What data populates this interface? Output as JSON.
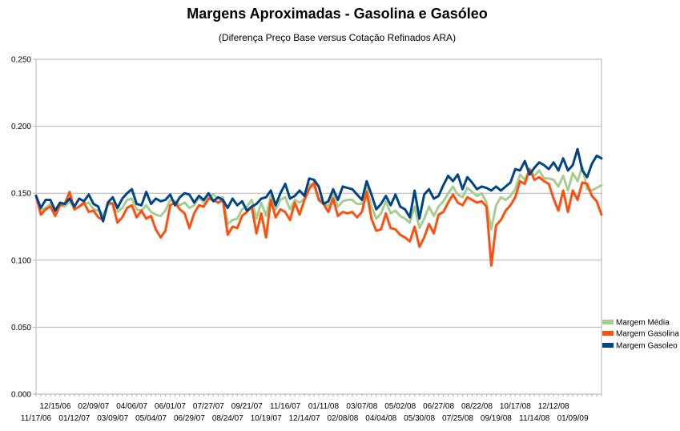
{
  "chart_data": {
    "type": "line",
    "title": "Margens Aproximadas - Gasolina e Gasóleo",
    "subtitle": "(Diferença Preço Base versus Cotação Refinados ARA)",
    "xlabel": "",
    "ylabel": "",
    "ylim": [
      0,
      0.25
    ],
    "y_ticks": [
      "0.000",
      "0.050",
      "0.100",
      "0.150",
      "0.200",
      "0.250"
    ],
    "grid": true,
    "legend_position": "right",
    "x_tick_labels_top": [
      "12/15/06",
      "02/09/07",
      "04/06/07",
      "06/01/07",
      "07/27/07",
      "09/21/07",
      "11/16/07",
      "01/11/08",
      "03/07/08",
      "05/02/08",
      "06/27/08",
      "08/22/08",
      "10/17/08",
      "12/12/08"
    ],
    "x_tick_labels_bottom": [
      "11/17/06",
      "01/12/07",
      "03/09/07",
      "05/04/07",
      "06/29/07",
      "08/24/07",
      "10/19/07",
      "12/14/07",
      "02/08/08",
      "04/04/08",
      "05/30/08",
      "07/25/08",
      "09/19/08",
      "11/14/08",
      "01/09/09"
    ],
    "series": [
      {
        "name": "Margem Média",
        "color": "#a6ce8f",
        "values": [
          0.148,
          0.137,
          0.139,
          0.142,
          0.136,
          0.141,
          0.14,
          0.144,
          0.138,
          0.14,
          0.142,
          0.143,
          0.138,
          0.137,
          0.134,
          0.141,
          0.143,
          0.136,
          0.139,
          0.145,
          0.146,
          0.138,
          0.137,
          0.141,
          0.136,
          0.134,
          0.133,
          0.137,
          0.145,
          0.144,
          0.141,
          0.143,
          0.139,
          0.141,
          0.147,
          0.143,
          0.147,
          0.149,
          0.146,
          0.147,
          0.127,
          0.13,
          0.131,
          0.138,
          0.14,
          0.145,
          0.131,
          0.143,
          0.133,
          0.148,
          0.138,
          0.145,
          0.147,
          0.138,
          0.145,
          0.143,
          0.146,
          0.157,
          0.155,
          0.146,
          0.143,
          0.14,
          0.149,
          0.14,
          0.144,
          0.145,
          0.145,
          0.142,
          0.142,
          0.154,
          0.14,
          0.131,
          0.135,
          0.144,
          0.135,
          0.137,
          0.133,
          0.131,
          0.128,
          0.14,
          0.124,
          0.131,
          0.14,
          0.133,
          0.14,
          0.144,
          0.15,
          0.155,
          0.149,
          0.147,
          0.154,
          0.151,
          0.148,
          0.15,
          0.143,
          0.123,
          0.141,
          0.147,
          0.145,
          0.148,
          0.153,
          0.164,
          0.16,
          0.168,
          0.163,
          0.167,
          0.161,
          0.161,
          0.16,
          0.155,
          0.163,
          0.152,
          0.165,
          0.159,
          0.17,
          0.153,
          0.152,
          0.154,
          0.156
        ]
      },
      {
        "name": "Margem Gasolina",
        "color": "#ff4f0f",
        "values": [
          0.148,
          0.134,
          0.138,
          0.14,
          0.133,
          0.141,
          0.142,
          0.151,
          0.138,
          0.14,
          0.143,
          0.136,
          0.137,
          0.132,
          0.13,
          0.143,
          0.142,
          0.128,
          0.132,
          0.139,
          0.141,
          0.132,
          0.137,
          0.131,
          0.133,
          0.123,
          0.117,
          0.122,
          0.141,
          0.143,
          0.138,
          0.135,
          0.124,
          0.135,
          0.141,
          0.14,
          0.146,
          0.145,
          0.143,
          0.145,
          0.119,
          0.125,
          0.124,
          0.133,
          0.136,
          0.14,
          0.12,
          0.135,
          0.117,
          0.145,
          0.132,
          0.138,
          0.136,
          0.13,
          0.143,
          0.134,
          0.145,
          0.153,
          0.158,
          0.145,
          0.142,
          0.136,
          0.146,
          0.133,
          0.136,
          0.135,
          0.136,
          0.132,
          0.136,
          0.151,
          0.131,
          0.122,
          0.123,
          0.135,
          0.124,
          0.123,
          0.119,
          0.117,
          0.114,
          0.125,
          0.11,
          0.117,
          0.127,
          0.12,
          0.134,
          0.136,
          0.143,
          0.149,
          0.143,
          0.141,
          0.147,
          0.145,
          0.143,
          0.144,
          0.14,
          0.096,
          0.126,
          0.13,
          0.137,
          0.141,
          0.147,
          0.159,
          0.157,
          0.168,
          0.16,
          0.162,
          0.159,
          0.157,
          0.146,
          0.137,
          0.152,
          0.136,
          0.152,
          0.145,
          0.158,
          0.157,
          0.148,
          0.144,
          0.134
        ]
      },
      {
        "name": "Margem Gasoleo",
        "color": "#004586",
        "values": [
          0.148,
          0.139,
          0.145,
          0.145,
          0.137,
          0.143,
          0.142,
          0.146,
          0.14,
          0.146,
          0.144,
          0.149,
          0.142,
          0.14,
          0.129,
          0.143,
          0.147,
          0.139,
          0.146,
          0.15,
          0.153,
          0.142,
          0.141,
          0.151,
          0.142,
          0.146,
          0.144,
          0.145,
          0.149,
          0.141,
          0.147,
          0.15,
          0.149,
          0.143,
          0.148,
          0.145,
          0.15,
          0.144,
          0.147,
          0.145,
          0.139,
          0.146,
          0.141,
          0.144,
          0.137,
          0.14,
          0.142,
          0.146,
          0.147,
          0.152,
          0.141,
          0.15,
          0.157,
          0.146,
          0.148,
          0.152,
          0.148,
          0.161,
          0.16,
          0.155,
          0.142,
          0.144,
          0.153,
          0.145,
          0.155,
          0.154,
          0.153,
          0.149,
          0.145,
          0.159,
          0.149,
          0.138,
          0.142,
          0.148,
          0.141,
          0.149,
          0.14,
          0.138,
          0.132,
          0.152,
          0.131,
          0.149,
          0.153,
          0.146,
          0.148,
          0.156,
          0.163,
          0.159,
          0.164,
          0.153,
          0.162,
          0.158,
          0.153,
          0.155,
          0.154,
          0.152,
          0.155,
          0.152,
          0.155,
          0.158,
          0.168,
          0.167,
          0.174,
          0.164,
          0.169,
          0.173,
          0.171,
          0.168,
          0.173,
          0.167,
          0.176,
          0.167,
          0.171,
          0.183,
          0.167,
          0.162,
          0.172,
          0.178,
          0.176
        ]
      }
    ]
  }
}
